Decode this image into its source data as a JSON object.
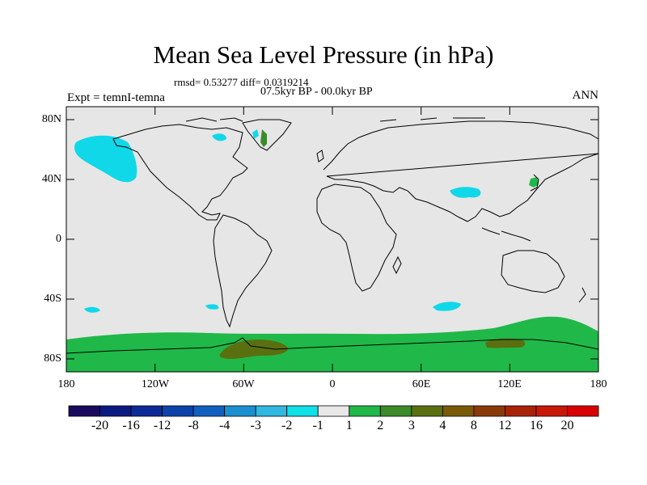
{
  "title": "Mean Sea Level Pressure (in hPa)",
  "stats_line": "rmsd= 0.53277 diff= 0.0319214",
  "period_line": "07.5kyr BP - 00.0kyr BP",
  "experiment": "Expt = temnI-temna",
  "season": "ANN",
  "latitude_labels": [
    "80N",
    "40N",
    "0",
    "40S",
    "80S"
  ],
  "longitude_labels": [
    "180",
    "120W",
    "60W",
    "0",
    "60E",
    "120E",
    "180"
  ],
  "colorbar": {
    "labels": [
      "-20",
      "-16",
      "-12",
      "-8",
      "-4",
      "-3",
      "-2",
      "-1",
      "1",
      "2",
      "3",
      "4",
      "8",
      "12",
      "16",
      "20"
    ],
    "colors": [
      "#1a0a5e",
      "#0c1a80",
      "#0d2a96",
      "#0d42aa",
      "#1060c0",
      "#1a90d0",
      "#30b8e0",
      "#10e0e8",
      "#e8e8e8",
      "#20b848",
      "#3c8a2a",
      "#5a7010",
      "#7a5a08",
      "#8a3a08",
      "#a82208",
      "#c81808",
      "#d80000"
    ]
  },
  "map_colors": {
    "background": "#e6e6e6",
    "negative_anomaly": "#10d8e8",
    "positive_anomaly": "#20b848",
    "strong_positive": "#5a7010"
  }
}
